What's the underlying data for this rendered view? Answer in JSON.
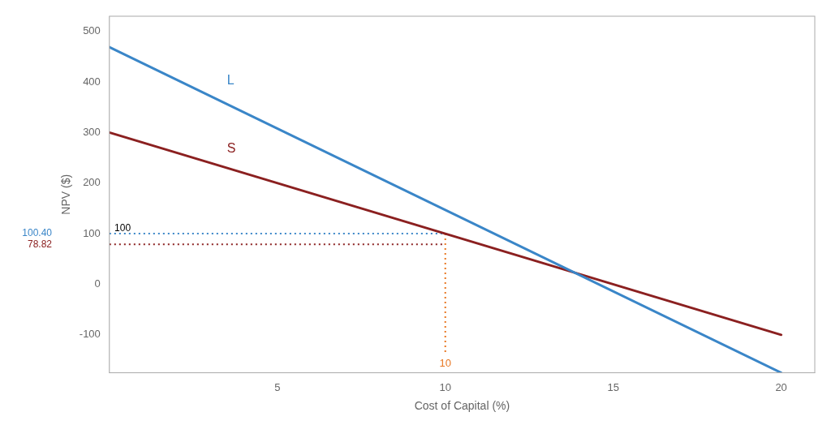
{
  "chart_data": {
    "type": "line",
    "xlabel": "Cost of Capital (%)",
    "ylabel": "NPV ($)",
    "series": [
      {
        "x": [
          0,
          20
        ],
        "values": [
          469,
          -175
        ],
        "color": "#3a86c8",
        "line_style": "solid"
      },
      {
        "x": [
          0,
          20
        ],
        "values": [
          300,
          -100
        ],
        "color": "#8b2020",
        "line_style": "solid"
      }
    ],
    "guides": [
      {
        "x": [
          0,
          10
        ],
        "values": [
          100.4,
          100.4
        ],
        "color": "#3a86c8",
        "line_style": "dotted"
      },
      {
        "x": [
          0,
          10
        ],
        "values": [
          78.82,
          78.82
        ],
        "color": "#8b2020",
        "line_style": "dotted"
      },
      {
        "x": [
          10,
          10
        ],
        "values": [
          100.4,
          -140
        ],
        "color": "#e87722",
        "line_style": "dotted",
        "label": "10"
      }
    ],
    "annotations": [
      {
        "text": "L",
        "x": 3.5,
        "y": 390,
        "color": "#3a86c8"
      },
      {
        "text": "S",
        "x": 3.5,
        "y": 255,
        "color": "#8b2020"
      },
      {
        "text": "100.40",
        "y": 100.4,
        "color": "#3a86c8"
      },
      {
        "text": "78.82",
        "y": 78.82,
        "color": "#8b2020"
      },
      {
        "text": "100",
        "x": 0.15,
        "y": 100.4,
        "color": "black"
      }
    ],
    "xlim": [
      0,
      21
    ],
    "ylim": [
      -175,
      530
    ],
    "xticks": [
      5,
      10,
      15,
      20
    ],
    "yticks": [
      -100,
      0,
      100,
      200,
      300,
      400,
      500
    ],
    "grid": false
  }
}
